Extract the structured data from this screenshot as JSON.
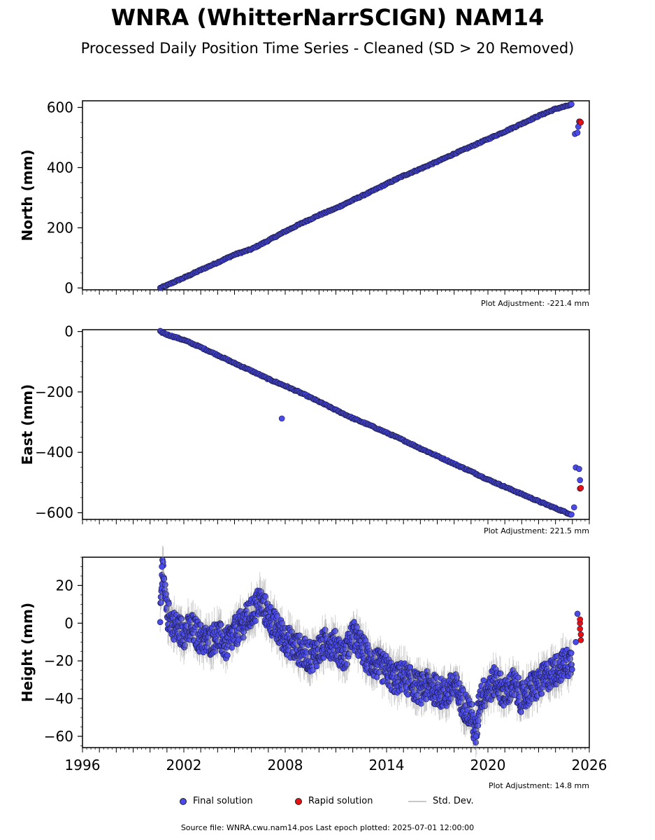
{
  "title": "WNRA (WhitterNarrSCIGN) NAM14",
  "subtitle": "Processed Daily Position Time Series - Cleaned (SD > 20 Removed)",
  "chart_data": [
    {
      "type": "scatter",
      "ylabel": "North (mm)",
      "adjustment": "Plot Adjustment: -221.4 mm",
      "xlim": [
        1996,
        2026
      ],
      "ylim": [
        -6,
        622
      ],
      "yticks": [
        0,
        200,
        400,
        600
      ],
      "ytick_labels": [
        "0",
        "200",
        "400",
        "600"
      ],
      "series": [
        {
          "name": "Final solution",
          "color": "#4a4ae8",
          "points": [
            [
              2000.6,
              0
            ],
            [
              2001.0,
              9
            ],
            [
              2001.5,
              22
            ],
            [
              2002.0,
              34
            ],
            [
              2003.0,
              60
            ],
            [
              2004.0,
              85
            ],
            [
              2005.0,
              111
            ],
            [
              2006.0,
              129
            ],
            [
              2007.0,
              158
            ],
            [
              2008.0,
              188
            ],
            [
              2009.0,
              216
            ],
            [
              2010.0,
              242
            ],
            [
              2011.0,
              265
            ],
            [
              2012.0,
              292
            ],
            [
              2013.0,
              318
            ],
            [
              2014.0,
              346
            ],
            [
              2015.0,
              373
            ],
            [
              2016.0,
              396
            ],
            [
              2017.0,
              420
            ],
            [
              2018.0,
              446
            ],
            [
              2019.0,
              470
            ],
            [
              2020.0,
              495
            ],
            [
              2021.0,
              520
            ],
            [
              2022.0,
              546
            ],
            [
              2023.0,
              572
            ],
            [
              2024.0,
              595
            ],
            [
              2025.0,
              610
            ],
            [
              2025.15,
              512
            ],
            [
              2025.3,
              516
            ],
            [
              2025.35,
              536
            ],
            [
              2025.4,
              553
            ]
          ]
        },
        {
          "name": "Rapid solution",
          "color": "#e81010",
          "points": [
            [
              2025.45,
              553
            ],
            [
              2025.5,
              550
            ]
          ]
        }
      ]
    },
    {
      "type": "scatter",
      "ylabel": "East (mm)",
      "adjustment": "Plot Adjustment: 221.5 mm",
      "xlim": [
        1996,
        2026
      ],
      "ylim": [
        -622,
        6
      ],
      "yticks": [
        0,
        -200,
        -400,
        -600
      ],
      "ytick_labels": [
        "0",
        "−200",
        "−400",
        "−600"
      ],
      "series": [
        {
          "name": "Final solution",
          "color": "#4a4ae8",
          "points": [
            [
              2000.6,
              0
            ],
            [
              2001.0,
              -10
            ],
            [
              2002.0,
              -28
            ],
            [
              2003.0,
              -52
            ],
            [
              2004.0,
              -78
            ],
            [
              2005.0,
              -105
            ],
            [
              2006.0,
              -130
            ],
            [
              2007.0,
              -157
            ],
            [
              2007.8,
              -288
            ],
            [
              2008.0,
              -180
            ],
            [
              2009.0,
              -205
            ],
            [
              2010.0,
              -232
            ],
            [
              2011.0,
              -260
            ],
            [
              2012.0,
              -287
            ],
            [
              2013.0,
              -310
            ],
            [
              2014.0,
              -335
            ],
            [
              2015.0,
              -360
            ],
            [
              2016.0,
              -387
            ],
            [
              2017.0,
              -412
            ],
            [
              2018.0,
              -438
            ],
            [
              2019.0,
              -463
            ],
            [
              2020.0,
              -490
            ],
            [
              2021.0,
              -514
            ],
            [
              2022.0,
              -538
            ],
            [
              2023.0,
              -562
            ],
            [
              2024.0,
              -585
            ],
            [
              2025.0,
              -607
            ],
            [
              2025.1,
              -582
            ],
            [
              2025.2,
              -450
            ],
            [
              2025.4,
              -455
            ],
            [
              2025.45,
              -492
            ]
          ]
        },
        {
          "name": "Rapid solution",
          "color": "#e81010",
          "points": [
            [
              2025.45,
              -520
            ],
            [
              2025.5,
              -518
            ]
          ]
        }
      ]
    },
    {
      "type": "scatter",
      "ylabel": "Height (mm)",
      "adjustment": "Plot Adjustment: 14.8 mm",
      "xlim": [
        1996,
        2026
      ],
      "ylim": [
        -66,
        35
      ],
      "yticks": [
        20,
        0,
        -20,
        -40,
        -60
      ],
      "ytick_labels": [
        "20",
        "0",
        "−20",
        "−40",
        "−60"
      ],
      "xticks": [
        1996,
        2002,
        2008,
        2014,
        2020,
        2026
      ],
      "xtick_labels": [
        "1996",
        "2002",
        "2008",
        "2014",
        "2020",
        "2026"
      ],
      "series": [
        {
          "name": "Final solution",
          "color": "#4a4ae8",
          "points": [
            [
              2000.6,
              2
            ],
            [
              2000.7,
              30
            ],
            [
              2001.0,
              5
            ],
            [
              2001.5,
              -2
            ],
            [
              2002.0,
              -5
            ],
            [
              2002.5,
              -3
            ],
            [
              2003.0,
              -8
            ],
            [
              2003.5,
              -10
            ],
            [
              2004.0,
              -6
            ],
            [
              2004.5,
              -12
            ],
            [
              2005.0,
              -5
            ],
            [
              2005.5,
              0
            ],
            [
              2006.0,
              5
            ],
            [
              2006.5,
              12
            ],
            [
              2007.0,
              4
            ],
            [
              2007.5,
              -3
            ],
            [
              2008.0,
              -8
            ],
            [
              2008.5,
              -12
            ],
            [
              2009.0,
              -15
            ],
            [
              2009.5,
              -18
            ],
            [
              2010.0,
              -14
            ],
            [
              2010.5,
              -10
            ],
            [
              2011.0,
              -12
            ],
            [
              2011.5,
              -18
            ],
            [
              2012.0,
              -6
            ],
            [
              2012.5,
              -13
            ],
            [
              2013.0,
              -20
            ],
            [
              2013.5,
              -22
            ],
            [
              2014.0,
              -25
            ],
            [
              2014.5,
              -30
            ],
            [
              2015.0,
              -28
            ],
            [
              2015.5,
              -32
            ],
            [
              2016.0,
              -35
            ],
            [
              2016.5,
              -33
            ],
            [
              2017.0,
              -36
            ],
            [
              2017.5,
              -38
            ],
            [
              2018.0,
              -33
            ],
            [
              2018.5,
              -42
            ],
            [
              2019.0,
              -48
            ],
            [
              2019.3,
              -60
            ],
            [
              2019.5,
              -40
            ],
            [
              2020.0,
              -35
            ],
            [
              2020.5,
              -30
            ],
            [
              2021.0,
              -38
            ],
            [
              2021.5,
              -32
            ],
            [
              2022.0,
              -40
            ],
            [
              2022.5,
              -35
            ],
            [
              2023.0,
              -32
            ],
            [
              2023.5,
              -28
            ],
            [
              2024.0,
              -25
            ],
            [
              2024.5,
              -22
            ],
            [
              2025.0,
              -20
            ],
            [
              2025.2,
              -10
            ],
            [
              2025.3,
              5
            ]
          ]
        },
        {
          "name": "Rapid solution",
          "color": "#e81010",
          "points": [
            [
              2025.45,
              0
            ],
            [
              2025.45,
              -3
            ],
            [
              2025.5,
              -6
            ],
            [
              2025.5,
              -9
            ],
            [
              2025.45,
              2
            ]
          ]
        }
      ]
    }
  ],
  "legend": {
    "final": "Final solution",
    "rapid": "Rapid solution",
    "std": "Std. Dev."
  },
  "footer": "Source file: WNRA.cwu.nam14.pos  Last epoch plotted: 2025-07-01 12:00:00"
}
